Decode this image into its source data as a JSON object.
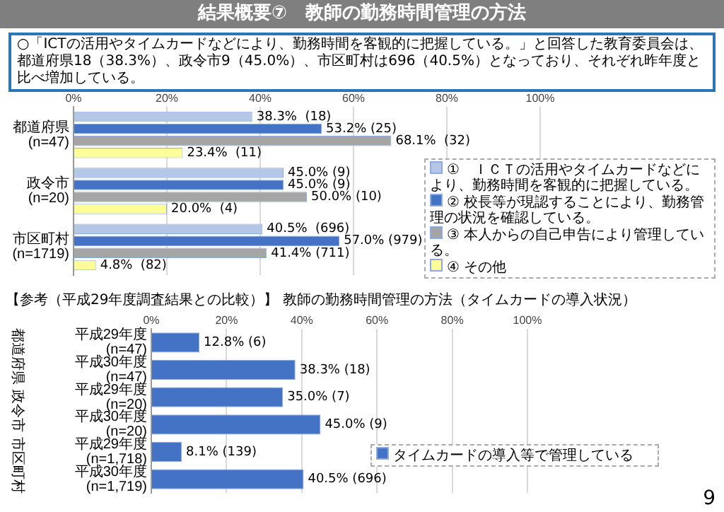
{
  "chart_data": [
    {
      "type": "bar",
      "orientation": "horizontal",
      "title": "結果概要⑦　教師の勤務時間管理の方法",
      "subtitle": "○「ICTの活用やタイムカードなどにより、勤務時間を客観的に把握している。」と回答した教育委員会は、都道府県18（38.3%）、政令市9（45.0%）、市区町村は696（40.5%）となっており、それぞれ昨年度と比べ増加している。",
      "categories": [
        "都道府県\n(n=47)",
        "政令市\n(n=20)",
        "市区町村\n(n=1719)"
      ],
      "series": [
        {
          "name": "①　ＩＣＴの活用やタイムカードなどにより、勤務時間を客観的に把握している。",
          "color": "#b4c7e7",
          "values": [
            38.3,
            45.0,
            40.5
          ],
          "value_labels": [
            "38.3%  (18)",
            "45.0% (9)",
            "40.5%  (696)"
          ]
        },
        {
          "name": "② 校長等が現認することにより、勤務管理の状況を確認している。",
          "color": "#4472c4",
          "values": [
            53.2,
            45.0,
            57.0
          ],
          "value_labels": [
            "53.2% (25)",
            "45.0% (9)",
            "57.0% (979)"
          ]
        },
        {
          "name": "③ 本人からの自己申告により管理している。",
          "color": "#a5a5a5",
          "values": [
            68.1,
            50.0,
            41.4
          ],
          "value_labels": [
            "68.1%  (32)",
            "50.0% (10)",
            "41.4% (711)"
          ]
        },
        {
          "name": "④ その他",
          "color": "#ffff99",
          "values": [
            23.4,
            20.0,
            4.8
          ],
          "value_labels": [
            "23.4%  (11)",
            "20.0%  (4)",
            "4.8%  (82)"
          ]
        }
      ],
      "xlim": [
        0,
        100
      ],
      "xticks": [
        {
          "value": 0,
          "label": "0%"
        },
        {
          "value": 20,
          "label": "20%"
        },
        {
          "value": 40,
          "label": "40%"
        },
        {
          "value": 60,
          "label": "60%"
        },
        {
          "value": 80,
          "label": "80%"
        },
        {
          "value": 100,
          "label": "100%"
        }
      ],
      "grid": "x",
      "legend": "bottom right"
    },
    {
      "type": "bar",
      "orientation": "horizontal",
      "title": "【参考（平成29年度調査結果との比較）】 教師の勤務時間管理の方法（タイムカードの導入状況）",
      "categories": [
        "平成29年度\n(n=47)",
        "平成30年度\n(n=47)",
        "平成29年度\n(n=20)",
        "平成30年度\n(n=20)",
        "平成29年度\n(n=1,718)",
        "平成30年度\n(n=1,719)"
      ],
      "series": [
        {
          "name": "タイムカードの導入等で管理している",
          "color": "#4472c4",
          "values": [
            12.8,
            38.3,
            35.0,
            45.0,
            8.1,
            40.5
          ],
          "value_labels": [
            "12.8% (6)",
            "38.3% (18)",
            "35.0% (7)",
            "45.0% (9)",
            "8.1% (139)",
            "40.5% (696)"
          ]
        }
      ],
      "xlim": [
        0,
        100
      ],
      "xticks": [
        {
          "value": 0,
          "label": "0%"
        },
        {
          "value": 20,
          "label": "20%"
        },
        {
          "value": 40,
          "label": "40%"
        },
        {
          "value": 60,
          "label": "60%"
        },
        {
          "value": 80,
          "label": "80%"
        },
        {
          "value": 100,
          "label": "100%"
        }
      ],
      "grid": "x",
      "legend": "bottom right",
      "annotations": [
        "都道府県",
        "政令市",
        "市区町村",
        "9"
      ]
    }
  ]
}
